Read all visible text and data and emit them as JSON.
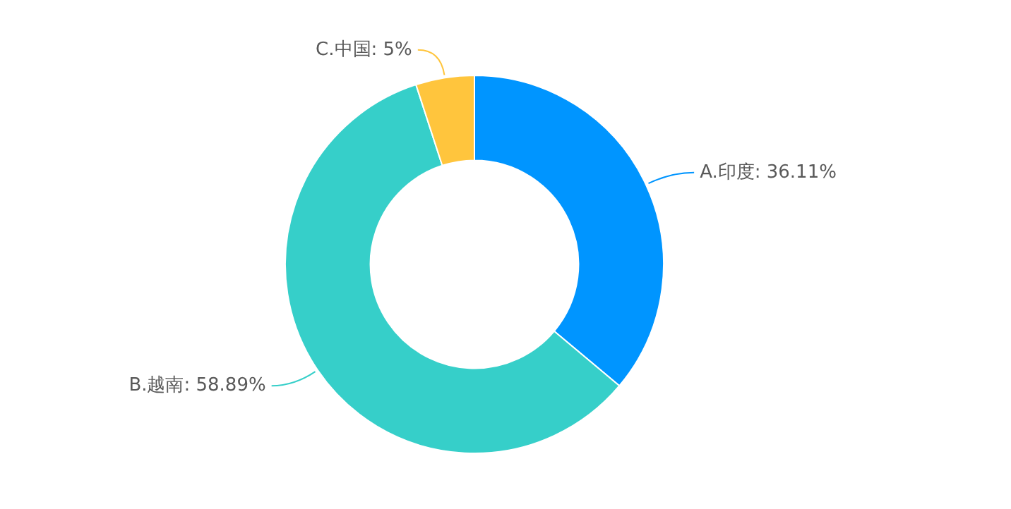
{
  "chart_data": {
    "type": "donut",
    "categories": [
      "A.印度",
      "B.越南",
      "C.中国"
    ],
    "values": [
      36.11,
      58.89,
      5
    ],
    "colors": [
      "#0095ff",
      "#36cfc9",
      "#ffc53d"
    ],
    "value_labels": [
      "36.11%",
      "58.89%",
      "5%"
    ],
    "legend": false
  }
}
